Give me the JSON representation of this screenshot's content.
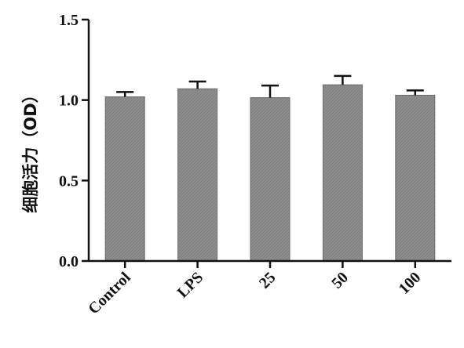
{
  "chart_data": {
    "type": "bar",
    "categories": [
      "Control",
      "LPS",
      "25",
      "50",
      "100"
    ],
    "values": [
      1.02,
      1.07,
      1.015,
      1.095,
      1.03
    ],
    "errors": [
      0.03,
      0.045,
      0.075,
      0.055,
      0.03
    ],
    "title": "",
    "xlabel": "",
    "ylabel": "细胞活力（OD）",
    "ylim": [
      0,
      1.5
    ],
    "yticks": [
      "0.0",
      "0.5",
      "1.0",
      "1.5"
    ],
    "ytick_values": [
      0,
      0.5,
      1.0,
      1.5
    ],
    "grid": false,
    "legend": "none",
    "bar_color": "#8c8c8c",
    "bar_edge_color": "#6a6a6a",
    "axis_color": "#111111"
  }
}
